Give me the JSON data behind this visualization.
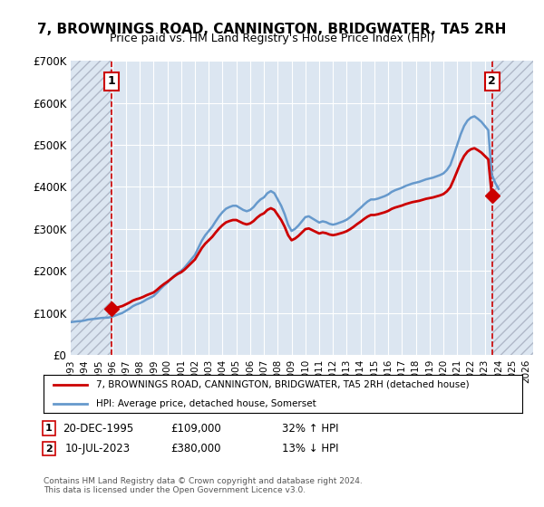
{
  "title": "7, BROWNINGS ROAD, CANNINGTON, BRIDGWATER, TA5 2RH",
  "subtitle": "Price paid vs. HM Land Registry's House Price Index (HPI)",
  "ylabel": "",
  "xlim_left": 1993.0,
  "xlim_right": 2026.5,
  "ylim_bottom": 0,
  "ylim_top": 700000,
  "yticks": [
    0,
    100000,
    200000,
    300000,
    400000,
    500000,
    600000,
    700000
  ],
  "ytick_labels": [
    "£0",
    "£100K",
    "£200K",
    "£300K",
    "£400K",
    "£500K",
    "£600K",
    "£700K"
  ],
  "xtick_years": [
    1993,
    1994,
    1995,
    1996,
    1997,
    1998,
    1999,
    2000,
    2001,
    2002,
    2003,
    2004,
    2005,
    2006,
    2007,
    2008,
    2009,
    2010,
    2011,
    2012,
    2013,
    2014,
    2015,
    2016,
    2017,
    2018,
    2019,
    2020,
    2021,
    2022,
    2023,
    2024,
    2025,
    2026
  ],
  "sale1_x": 1995.97,
  "sale1_y": 109000,
  "sale1_label": "1",
  "sale2_x": 2023.52,
  "sale2_y": 380000,
  "sale2_label": "2",
  "property_line_color": "#cc0000",
  "hpi_line_color": "#6699cc",
  "marker_color": "#cc0000",
  "vline_color": "#cc0000",
  "background_color": "#dce6f1",
  "plot_bg_color": "#dce6f1",
  "hatch_color": "#b0b8c8",
  "grid_color": "#ffffff",
  "legend_property_label": "7, BROWNINGS ROAD, CANNINGTON, BRIDGWATER, TA5 2RH (detached house)",
  "legend_hpi_label": "HPI: Average price, detached house, Somerset",
  "note1_label": "1",
  "note1_date": "20-DEC-1995",
  "note1_price": "£109,000",
  "note1_hpi": "32% ↑ HPI",
  "note2_label": "2",
  "note2_date": "10-JUL-2023",
  "note2_price": "£380,000",
  "note2_hpi": "13% ↓ HPI",
  "copyright_text": "Contains HM Land Registry data © Crown copyright and database right 2024.\nThis data is licensed under the Open Government Licence v3.0.",
  "hpi_data_x": [
    1993.0,
    1993.25,
    1993.5,
    1993.75,
    1994.0,
    1994.25,
    1994.5,
    1994.75,
    1995.0,
    1995.25,
    1995.5,
    1995.75,
    1996.0,
    1996.25,
    1996.5,
    1996.75,
    1997.0,
    1997.25,
    1997.5,
    1997.75,
    1998.0,
    1998.25,
    1998.5,
    1998.75,
    1999.0,
    1999.25,
    1999.5,
    1999.75,
    2000.0,
    2000.25,
    2000.5,
    2000.75,
    2001.0,
    2001.25,
    2001.5,
    2001.75,
    2002.0,
    2002.25,
    2002.5,
    2002.75,
    2003.0,
    2003.25,
    2003.5,
    2003.75,
    2004.0,
    2004.25,
    2004.5,
    2004.75,
    2005.0,
    2005.25,
    2005.5,
    2005.75,
    2006.0,
    2006.25,
    2006.5,
    2006.75,
    2007.0,
    2007.25,
    2007.5,
    2007.75,
    2008.0,
    2008.25,
    2008.5,
    2008.75,
    2009.0,
    2009.25,
    2009.5,
    2009.75,
    2010.0,
    2010.25,
    2010.5,
    2010.75,
    2011.0,
    2011.25,
    2011.5,
    2011.75,
    2012.0,
    2012.25,
    2012.5,
    2012.75,
    2013.0,
    2013.25,
    2013.5,
    2013.75,
    2014.0,
    2014.25,
    2014.5,
    2014.75,
    2015.0,
    2015.25,
    2015.5,
    2015.75,
    2016.0,
    2016.25,
    2016.5,
    2016.75,
    2017.0,
    2017.25,
    2017.5,
    2017.75,
    2018.0,
    2018.25,
    2018.5,
    2018.75,
    2019.0,
    2019.25,
    2019.5,
    2019.75,
    2020.0,
    2020.25,
    2020.5,
    2020.75,
    2021.0,
    2021.25,
    2021.5,
    2021.75,
    2022.0,
    2022.25,
    2022.5,
    2022.75,
    2023.0,
    2023.25,
    2023.5,
    2023.75,
    2024.0
  ],
  "hpi_data_y": [
    78000,
    79000,
    80000,
    80500,
    82000,
    84000,
    85000,
    86000,
    87000,
    88000,
    88500,
    89000,
    91000,
    94000,
    97000,
    100000,
    105000,
    110000,
    116000,
    120000,
    123000,
    127000,
    132000,
    136000,
    140000,
    148000,
    157000,
    165000,
    172000,
    180000,
    188000,
    195000,
    200000,
    208000,
    218000,
    228000,
    238000,
    255000,
    272000,
    285000,
    295000,
    305000,
    318000,
    330000,
    340000,
    348000,
    352000,
    355000,
    355000,
    350000,
    345000,
    342000,
    345000,
    352000,
    362000,
    370000,
    375000,
    385000,
    390000,
    385000,
    370000,
    355000,
    335000,
    310000,
    295000,
    300000,
    308000,
    318000,
    328000,
    330000,
    325000,
    320000,
    315000,
    318000,
    316000,
    312000,
    310000,
    312000,
    315000,
    318000,
    322000,
    328000,
    335000,
    343000,
    350000,
    358000,
    365000,
    370000,
    370000,
    372000,
    375000,
    378000,
    382000,
    388000,
    392000,
    395000,
    398000,
    402000,
    405000,
    408000,
    410000,
    412000,
    415000,
    418000,
    420000,
    422000,
    425000,
    428000,
    432000,
    440000,
    452000,
    475000,
    500000,
    525000,
    545000,
    558000,
    565000,
    568000,
    562000,
    555000,
    545000,
    535000,
    430000,
    410000,
    395000
  ],
  "property_data_x": [
    1995.97,
    2023.52
  ],
  "property_data_y": [
    109000,
    380000
  ]
}
